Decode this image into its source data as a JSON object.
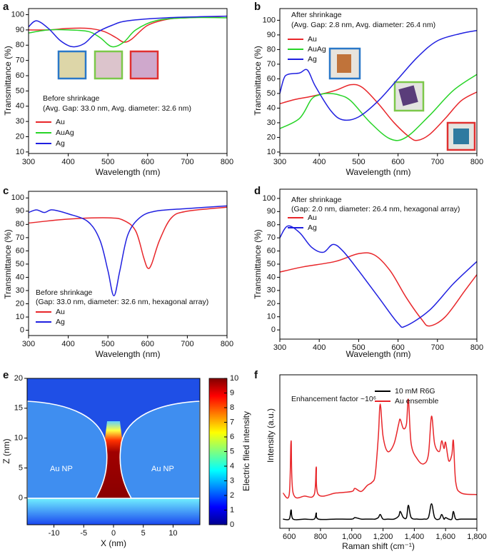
{
  "chart_data": [
    {
      "type": "line",
      "panel": "a",
      "xlabel": "Wavelength (nm)",
      "ylabel": "Transmittance (%)",
      "xlim": [
        300,
        800
      ],
      "ylim": [
        9,
        104
      ],
      "xticks": [
        300,
        400,
        500,
        600,
        700,
        800
      ],
      "yticks": [
        10,
        20,
        30,
        40,
        50,
        60,
        70,
        80,
        90,
        100
      ],
      "annotations": [
        "Before shrinkage",
        "(Avg. Gap: 33.0 nm, Avg. diameter: 32.6 nm)"
      ],
      "series": [
        {
          "name": "Au",
          "color": "#e8262a",
          "x": [
            300,
            350,
            400,
            450,
            490,
            520,
            540,
            560,
            600,
            650,
            700,
            800
          ],
          "values": [
            90,
            90,
            91,
            91,
            89,
            85,
            82,
            84,
            93,
            97,
            98,
            99
          ]
        },
        {
          "name": "AuAg",
          "color": "#27d427",
          "x": [
            300,
            350,
            400,
            450,
            480,
            510,
            540,
            570,
            620,
            700,
            800
          ],
          "values": [
            88,
            90,
            90,
            89,
            85,
            79,
            82,
            90,
            96,
            98,
            98
          ]
        },
        {
          "name": "Ag",
          "color": "#2020e0",
          "x": [
            300,
            320,
            350,
            380,
            410,
            440,
            470,
            510,
            550,
            650,
            800
          ],
          "values": [
            92,
            96,
            91,
            83,
            79,
            81,
            88,
            93,
            96,
            98,
            99
          ]
        }
      ]
    },
    {
      "type": "line",
      "panel": "b",
      "xlabel": "Wavelength (nm)",
      "ylabel": "Transmittance (%)",
      "xlim": [
        300,
        800
      ],
      "ylim": [
        9,
        108
      ],
      "xticks": [
        300,
        400,
        500,
        600,
        700,
        800
      ],
      "yticks": [
        10,
        20,
        30,
        40,
        50,
        60,
        70,
        80,
        90,
        100
      ],
      "annotations": [
        "After shrinkage",
        "(Avg. Gap: 2.8 nm, Avg. diameter: 26.4 nm)"
      ],
      "series": [
        {
          "name": "Au",
          "color": "#e8262a",
          "x": [
            300,
            340,
            380,
            440,
            480,
            510,
            550,
            590,
            630,
            650,
            680,
            720,
            760,
            800
          ],
          "values": [
            43,
            46,
            48,
            52,
            56,
            54,
            43,
            30,
            20,
            18,
            22,
            33,
            45,
            51
          ]
        },
        {
          "name": "AuAg",
          "color": "#27d427",
          "x": [
            300,
            350,
            380,
            400,
            420,
            450,
            480,
            530,
            580,
            620,
            680,
            740,
            800
          ],
          "values": [
            26,
            33,
            46,
            49,
            50,
            49,
            45,
            30,
            19,
            20,
            35,
            52,
            63
          ]
        },
        {
          "name": "Ag",
          "color": "#2020e0",
          "x": [
            300,
            310,
            320,
            350,
            370,
            390,
            430,
            460,
            500,
            550,
            600,
            650,
            700,
            760,
            800
          ],
          "values": [
            50,
            60,
            63,
            64,
            66,
            55,
            38,
            32,
            34,
            45,
            60,
            75,
            86,
            91,
            93
          ]
        }
      ]
    },
    {
      "type": "line",
      "panel": "c",
      "xlabel": "Wavelength (nm)",
      "ylabel": "Transmittance (%)",
      "xlim": [
        300,
        800
      ],
      "ylim": [
        -4,
        105
      ],
      "xticks": [
        300,
        400,
        500,
        600,
        700,
        800
      ],
      "yticks": [
        0,
        10,
        20,
        30,
        40,
        50,
        60,
        70,
        80,
        90,
        100
      ],
      "annotations": [
        "Before shrinkage",
        "(Gap: 33.0 nm, diameter: 32.6 nm, hexagonal array)"
      ],
      "series": [
        {
          "name": "Au",
          "color": "#e8262a",
          "x": [
            300,
            400,
            500,
            540,
            570,
            590,
            600,
            610,
            630,
            660,
            700,
            800
          ],
          "values": [
            81,
            84,
            85,
            83,
            75,
            55,
            47,
            50,
            68,
            85,
            90,
            93
          ]
        },
        {
          "name": "Ag",
          "color": "#2020e0",
          "x": [
            300,
            320,
            340,
            360,
            400,
            450,
            480,
            500,
            515,
            530,
            550,
            580,
            620,
            700,
            800
          ],
          "values": [
            89,
            91,
            89,
            91,
            88,
            82,
            68,
            45,
            26,
            45,
            72,
            85,
            90,
            92,
            94
          ]
        }
      ]
    },
    {
      "type": "line",
      "panel": "d",
      "xlabel": "Wavelength (nm)",
      "ylabel": "Transmittance (%)",
      "xlim": [
        300,
        800
      ],
      "ylim": [
        -7,
        107
      ],
      "xticks": [
        300,
        400,
        500,
        600,
        700,
        800
      ],
      "yticks": [
        0,
        10,
        20,
        30,
        40,
        50,
        60,
        70,
        80,
        90,
        100
      ],
      "annotations": [
        "After shrinkage",
        "(Gap: 2.0 nm, diameter: 26.4 nm, hexagonal array)"
      ],
      "series": [
        {
          "name": "Au",
          "color": "#e8262a",
          "x": [
            300,
            360,
            440,
            500,
            540,
            580,
            620,
            660,
            680,
            720,
            770,
            800
          ],
          "values": [
            44,
            48,
            52,
            58,
            57,
            45,
            25,
            8,
            3,
            10,
            30,
            42
          ]
        },
        {
          "name": "Ag",
          "color": "#2020e0",
          "x": [
            300,
            320,
            350,
            380,
            410,
            435,
            460,
            500,
            550,
            600,
            620,
            680,
            740,
            800
          ],
          "values": [
            70,
            79,
            74,
            63,
            59,
            65,
            60,
            45,
            25,
            5,
            3,
            15,
            35,
            52
          ]
        }
      ]
    },
    {
      "type": "heatmap",
      "panel": "e",
      "xlabel": "X (nm)",
      "ylabel": "Z (nm)",
      "xlim": [
        -14.5,
        14.5
      ],
      "ylim": [
        -4.5,
        20
      ],
      "xticks": [
        -10,
        -5,
        0,
        5,
        10
      ],
      "yticks": [
        0,
        5,
        10,
        15,
        20
      ],
      "annotations": [
        "Au NP",
        "Au NP"
      ],
      "colorbar_label": "Electric filed intensity",
      "clim": [
        0,
        10
      ],
      "cticks": [
        0,
        1,
        2,
        3,
        4,
        5,
        6,
        7,
        8,
        9,
        10
      ]
    },
    {
      "type": "line",
      "panel": "f",
      "xlabel": "Raman shift (cm⁻¹)",
      "ylabel": "Intensity (a.u.)",
      "xlim": [
        540,
        1800
      ],
      "ylim": [
        0,
        100
      ],
      "xticks": [
        600,
        800,
        {
          "value": 1000,
          "label": "1,000"
        },
        {
          "value": 1200,
          "label": "1,200"
        },
        {
          "value": 1400,
          "label": "1,400"
        },
        {
          "value": 1600,
          "label": "1,600"
        },
        {
          "value": 1800,
          "label": "1,800"
        }
      ],
      "annotations": [
        "Enhancement factor ~10⁶"
      ],
      "x": [
        560,
        600,
        612,
        625,
        700,
        760,
        773,
        786,
        900,
        1000,
        1020,
        1060,
        1100,
        1130,
        1150,
        1170,
        1182,
        1200,
        1230,
        1270,
        1300,
        1310,
        1330,
        1350,
        1362,
        1380,
        1420,
        1460,
        1490,
        1510,
        1530,
        1560,
        1575,
        1590,
        1600,
        1620,
        1640,
        1650,
        1665,
        1700,
        1800
      ],
      "series": [
        {
          "name": "10 mM R6G",
          "color": "#000000",
          "values": [
            6,
            6,
            12,
            6,
            6,
            6,
            10,
            6,
            6,
            6,
            7,
            6,
            6,
            6,
            6,
            7,
            9,
            6,
            6,
            6,
            8,
            11,
            7,
            7,
            15,
            7,
            6,
            6,
            7,
            16,
            7,
            6,
            9,
            6,
            7,
            6,
            6,
            11,
            6,
            6,
            6
          ]
        },
        {
          "name": "Au ensemble",
          "color": "#e8262a",
          "values": [
            23,
            22,
            57,
            23,
            21,
            22,
            40,
            22,
            23,
            24,
            26,
            24,
            28,
            30,
            35,
            60,
            81,
            60,
            50,
            55,
            68,
            71,
            65,
            68,
            84,
            55,
            45,
            42,
            48,
            73,
            55,
            50,
            57,
            52,
            56,
            44,
            48,
            57,
            30,
            23,
            22
          ]
        }
      ]
    }
  ]
}
